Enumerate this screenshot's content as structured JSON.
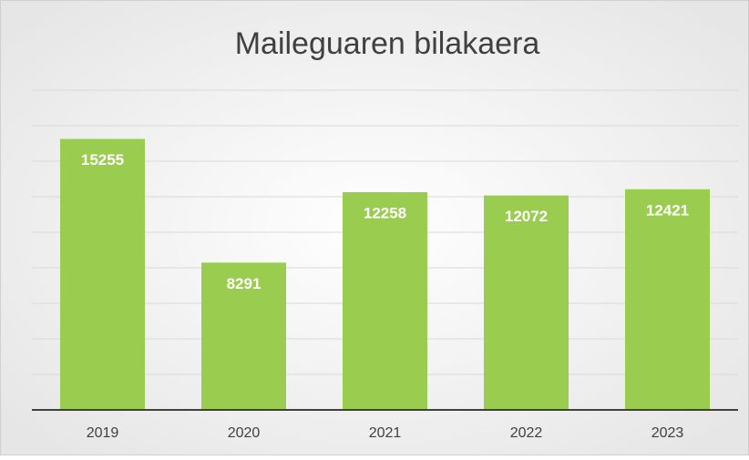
{
  "chart_data": {
    "type": "bar",
    "title": "Maileguaren bilakaera",
    "categories": [
      "2019",
      "2020",
      "2021",
      "2022",
      "2023"
    ],
    "values": [
      15255,
      8291,
      12258,
      12072,
      12421
    ],
    "color": "#99cc4f",
    "ylim": [
      0,
      18000
    ],
    "yticks": [
      0,
      2000,
      4000,
      6000,
      8000,
      10000,
      12000,
      14000,
      16000,
      18000
    ],
    "grid": true
  }
}
